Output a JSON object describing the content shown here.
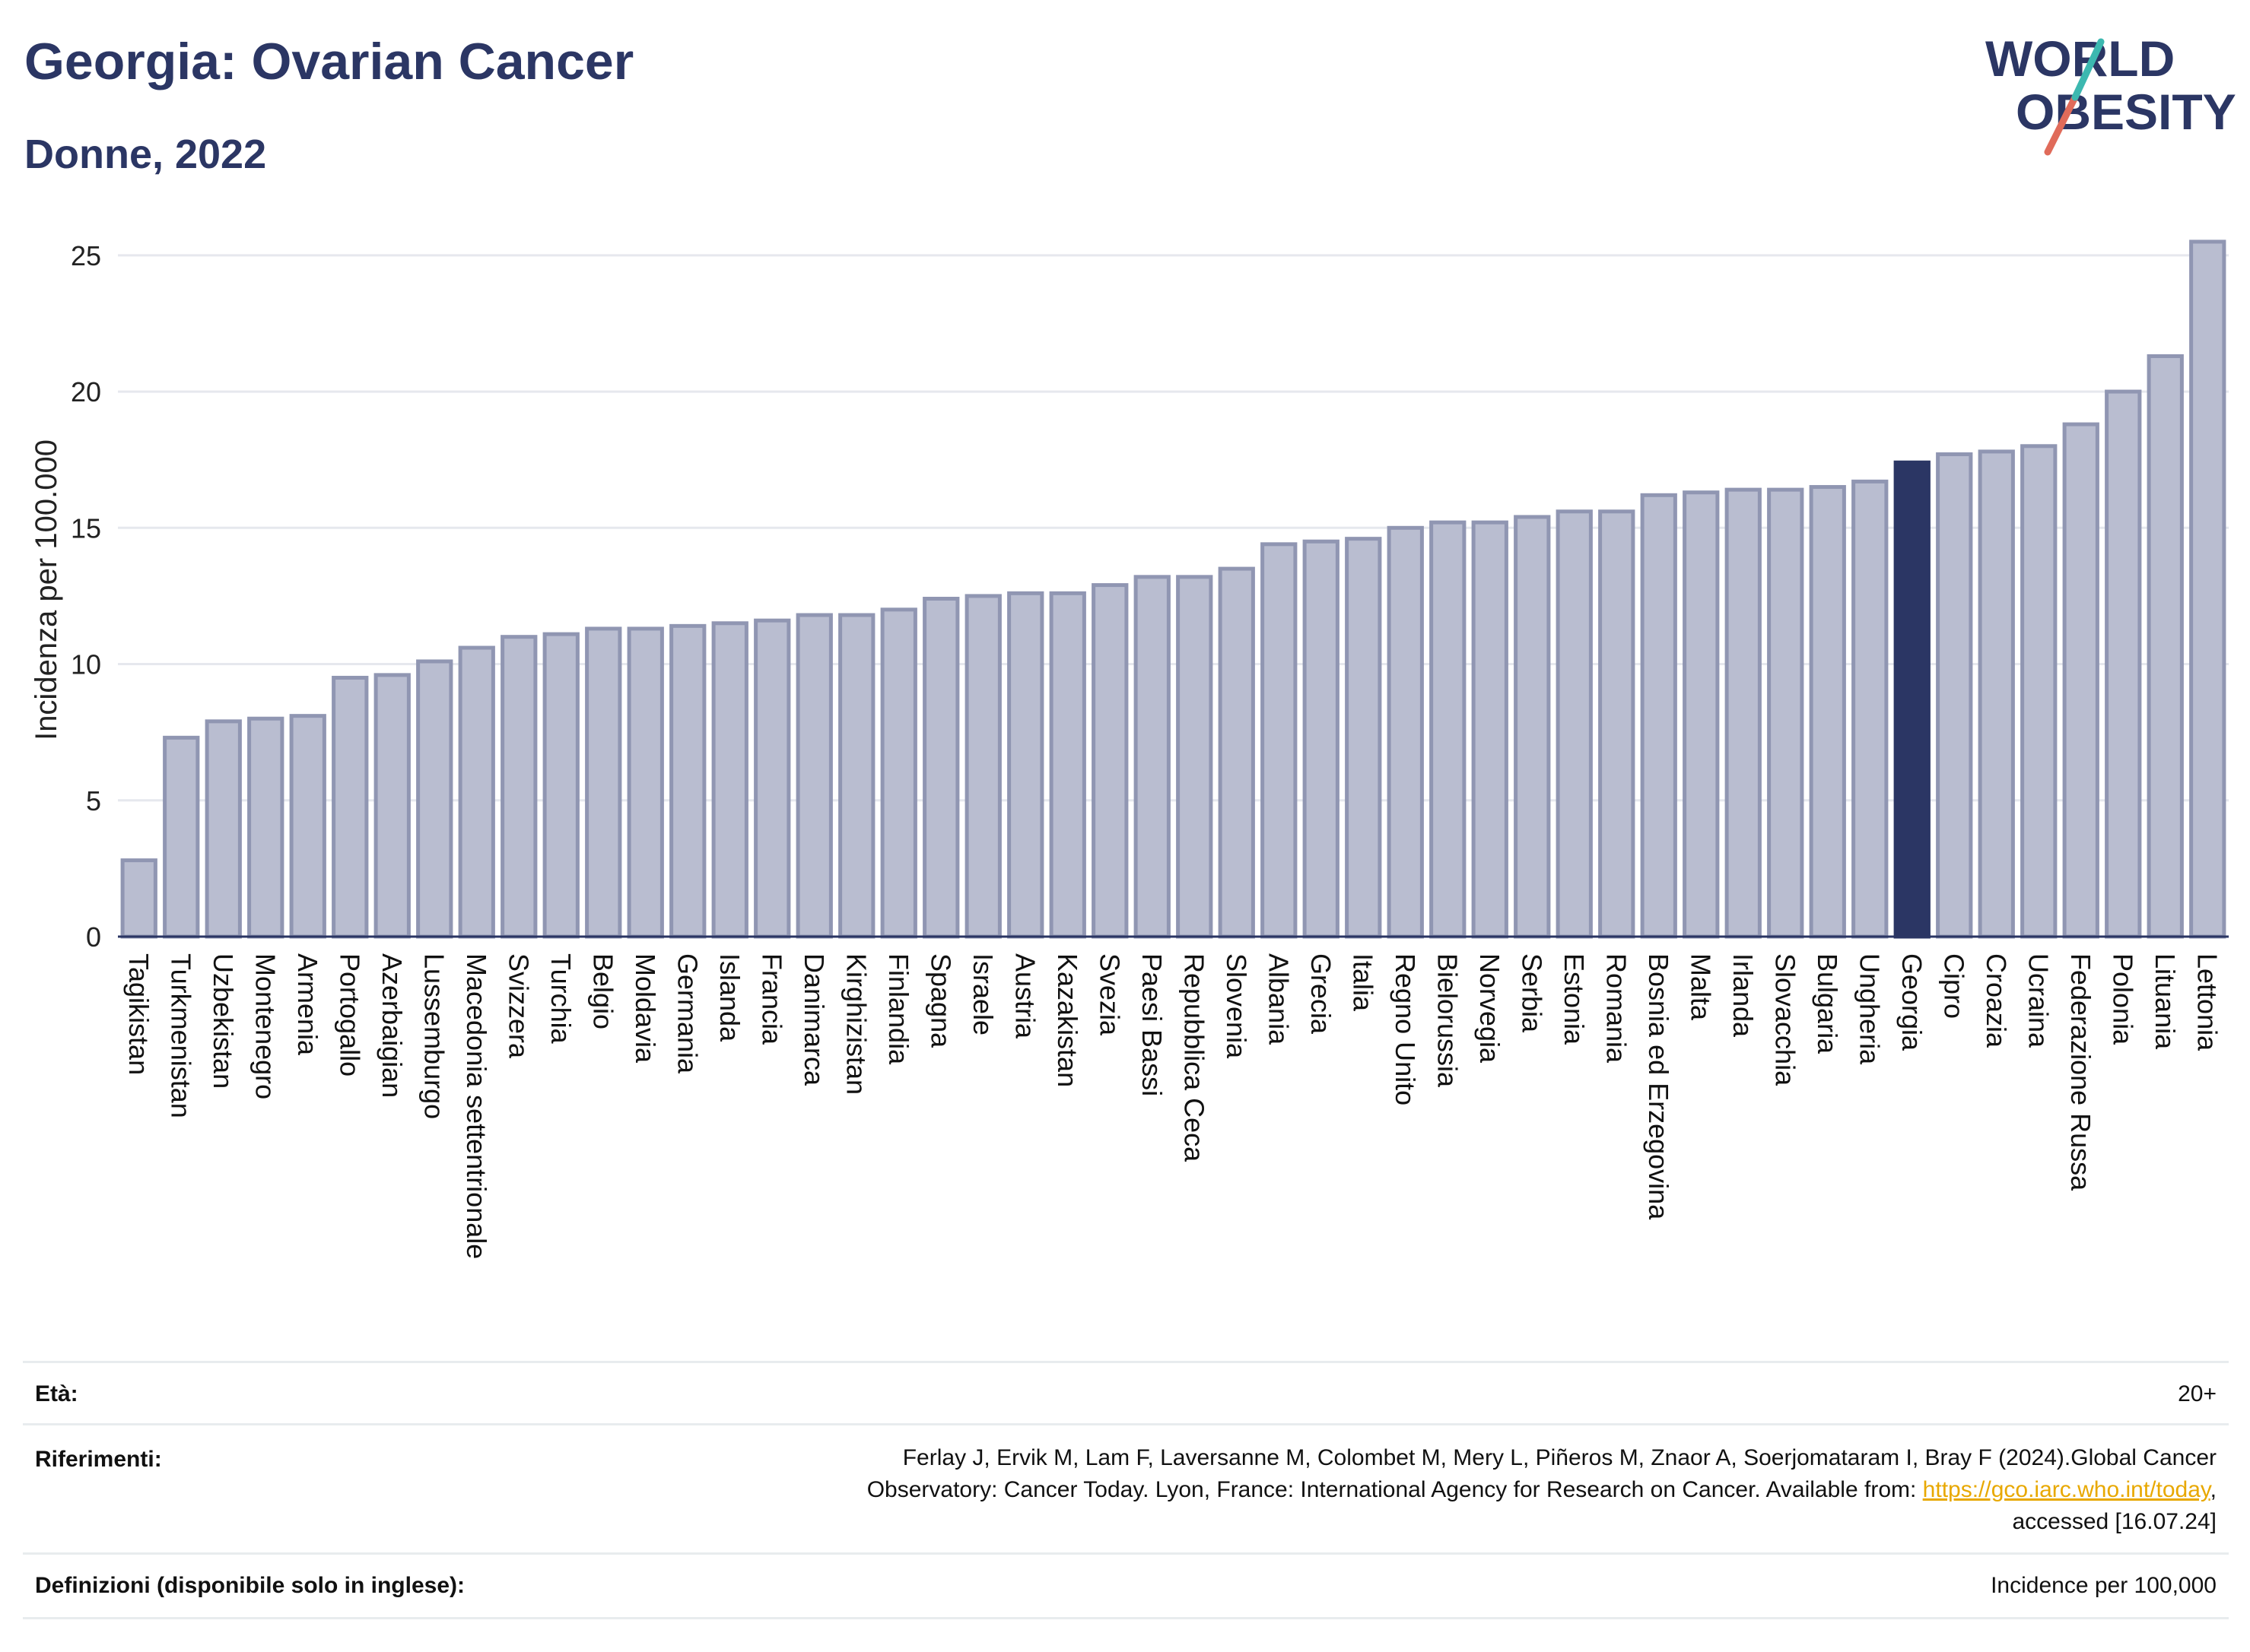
{
  "header": {
    "title": "Georgia: Ovarian Cancer",
    "subtitle": "Donne, 2022",
    "logo_line1": "WORLD",
    "logo_line2": "OBESITY"
  },
  "colors": {
    "bar": "#b9bdd0",
    "bar_edge": "#9096b2",
    "highlight": "#2b3664",
    "title": "#2b3664",
    "grid": "#e6e8ee",
    "link": "#e8a800"
  },
  "chart_data": {
    "type": "bar",
    "ylabel": "Incidenza per 100.000",
    "ylim": [
      0,
      26
    ],
    "yticks": [
      0,
      5,
      10,
      15,
      20,
      25
    ],
    "grid": true,
    "highlight": "Georgia",
    "categories": [
      "Tagikistan",
      "Turkmenistan",
      "Uzbekistan",
      "Montenegro",
      "Armenia",
      "Portogallo",
      "Azerbaigian",
      "Lussemburgo",
      "Macedonia settentrionale",
      "Svizzera",
      "Turchia",
      "Belgio",
      "Moldavia",
      "Germania",
      "Islanda",
      "Francia",
      "Danimarca",
      "Kirghizistan",
      "Finlandia",
      "Spagna",
      "Israele",
      "Austria",
      "Kazakistan",
      "Svezia",
      "Paesi Bassi",
      "Repubblica Ceca",
      "Slovenia",
      "Albania",
      "Grecia",
      "Italia",
      "Regno Unito",
      "Bielorussia",
      "Norvegia",
      "Serbia",
      "Estonia",
      "Romania",
      "Bosnia ed Erzegovina",
      "Malta",
      "Irlanda",
      "Slovacchia",
      "Bulgaria",
      "Ungheria",
      "Georgia",
      "Cipro",
      "Croazia",
      "Ucraina",
      "Federazione Russa",
      "Polonia",
      "Lituania",
      "Lettonia"
    ],
    "values": [
      2.8,
      7.3,
      7.9,
      8.0,
      8.1,
      9.5,
      9.6,
      10.1,
      10.6,
      11.0,
      11.1,
      11.3,
      11.3,
      11.4,
      11.5,
      11.6,
      11.8,
      11.8,
      12.0,
      12.4,
      12.5,
      12.6,
      12.6,
      12.9,
      13.2,
      13.2,
      13.5,
      14.4,
      14.5,
      14.6,
      15.0,
      15.2,
      15.2,
      15.4,
      15.6,
      15.6,
      16.2,
      16.3,
      16.4,
      16.4,
      16.5,
      16.7,
      17.4,
      17.7,
      17.8,
      18.0,
      18.8,
      20.0,
      21.3,
      25.5
    ]
  },
  "footer": {
    "age_label": "Età:",
    "age_value": "20+",
    "refs_label": "Riferimenti:",
    "refs_line1": "Ferlay J, Ervik M, Lam F, Laversanne M, Colombet M, Mery L, Piñeros M, Znaor A, Soerjomataram I, Bray F (2024).Global Cancer",
    "refs_line2a": "Observatory: Cancer Today. Lyon, France: International Agency for Research on Cancer. Available from: ",
    "refs_link": "https://gco.iarc.who.int/today",
    "refs_line2b": ",",
    "refs_line3": "accessed [16.07.24]",
    "defs_label": "Definizioni (disponibile solo in inglese):",
    "defs_value": "Incidence per 100,000"
  }
}
